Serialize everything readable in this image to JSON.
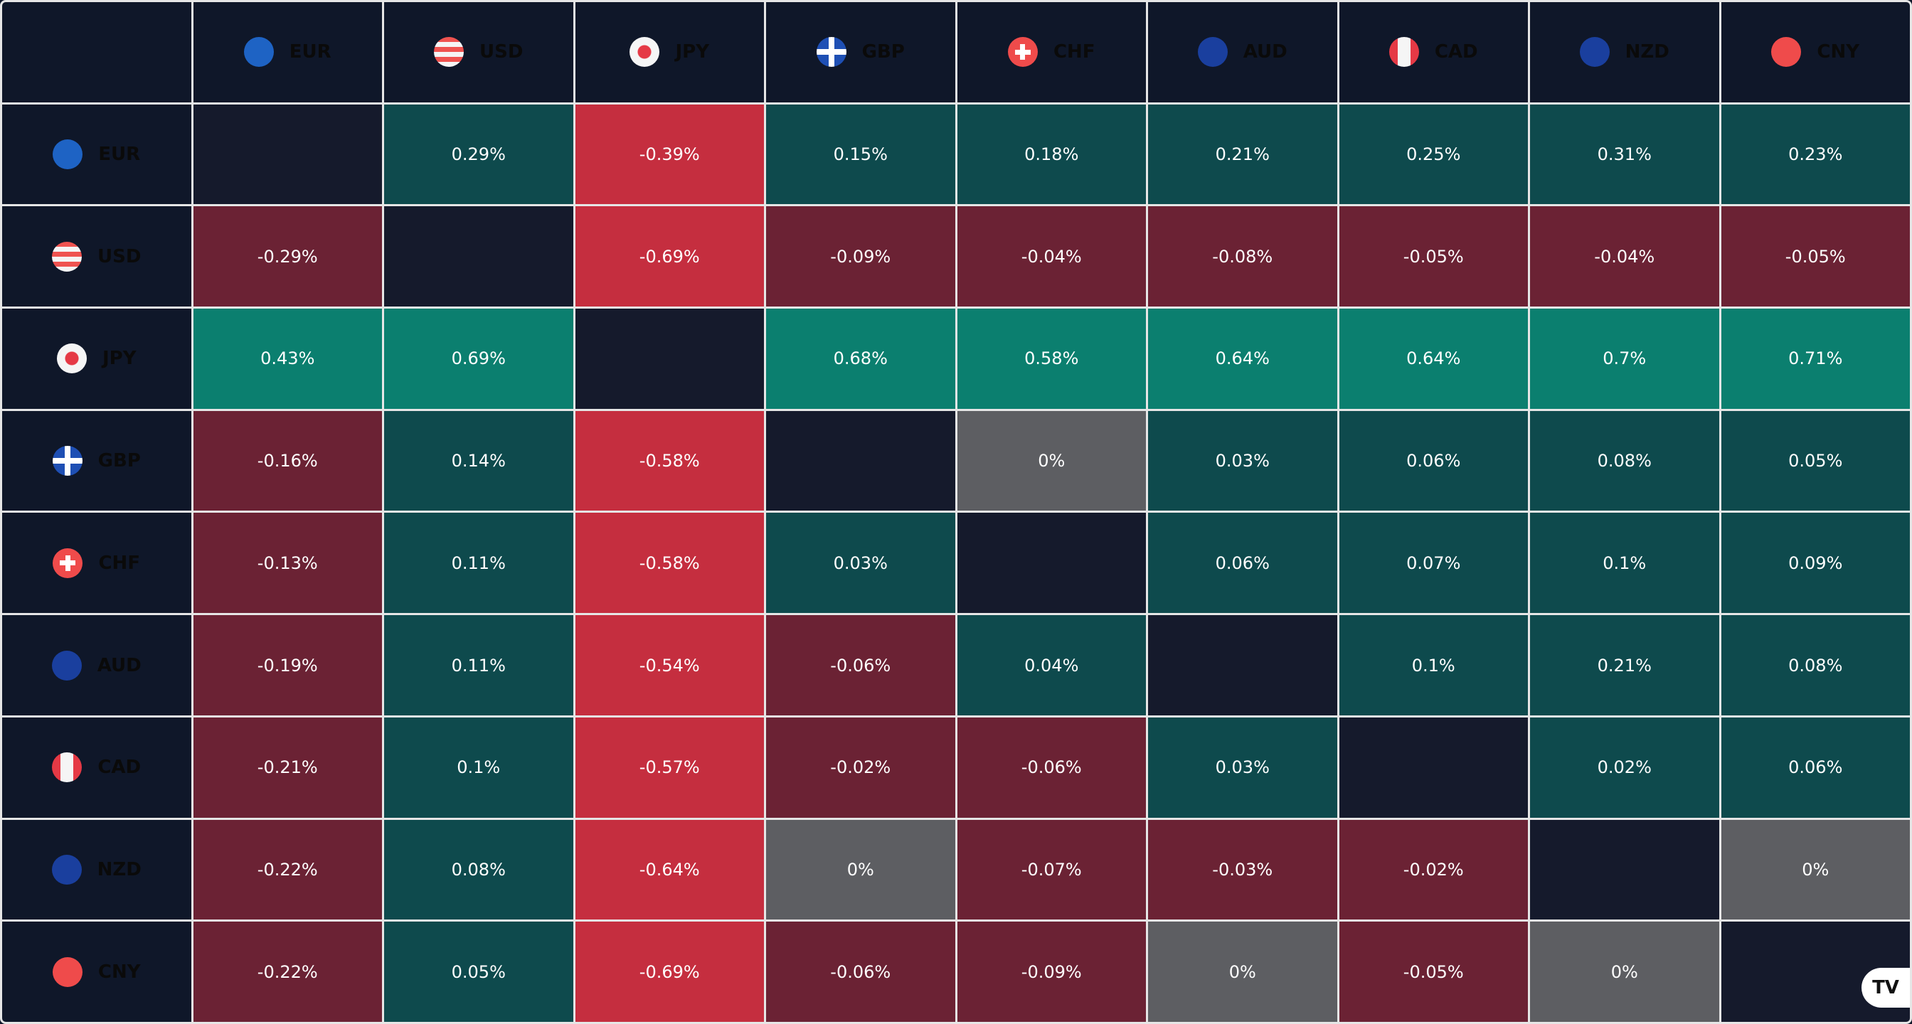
{
  "currencies": [
    "EUR",
    "USD",
    "JPY",
    "GBP",
    "CHF",
    "AUD",
    "CAD",
    "NZD",
    "CNY"
  ],
  "flags": {
    "EUR": "eu-flag",
    "USD": "us-flag",
    "JPY": "jp-flag",
    "GBP": "gb-flag",
    "CHF": "ch-flag",
    "AUD": "au-flag",
    "CAD": "ca-flag",
    "NZD": "nz-flag",
    "CNY": "cn-flag"
  },
  "matrix": [
    [
      "",
      "0.29%",
      "-0.39%",
      "0.15%",
      "0.18%",
      "0.21%",
      "0.25%",
      "0.31%",
      "0.23%"
    ],
    [
      "-0.29%",
      "",
      "-0.69%",
      "-0.09%",
      "-0.04%",
      "-0.08%",
      "-0.05%",
      "-0.04%",
      "-0.05%"
    ],
    [
      "0.43%",
      "0.69%",
      "",
      "0.68%",
      "0.58%",
      "0.64%",
      "0.64%",
      "0.7%",
      "0.71%"
    ],
    [
      "-0.16%",
      "0.14%",
      "-0.58%",
      "",
      "0%",
      "0.03%",
      "0.06%",
      "0.08%",
      "0.05%"
    ],
    [
      "-0.13%",
      "0.11%",
      "-0.58%",
      "0.03%",
      "",
      "0.06%",
      "0.07%",
      "0.1%",
      "0.09%"
    ],
    [
      "-0.19%",
      "0.11%",
      "-0.54%",
      "-0.06%",
      "0.04%",
      "",
      "0.1%",
      "0.21%",
      "0.08%"
    ],
    [
      "-0.21%",
      "0.1%",
      "-0.57%",
      "-0.02%",
      "-0.06%",
      "0.03%",
      "",
      "0.02%",
      "0.06%"
    ],
    [
      "-0.22%",
      "0.08%",
      "-0.64%",
      "0%",
      "-0.07%",
      "-0.03%",
      "-0.02%",
      "",
      "0%"
    ],
    [
      "-0.22%",
      "0.05%",
      "-0.69%",
      "-0.06%",
      "-0.09%",
      "0%",
      "-0.05%",
      "0%",
      ""
    ]
  ],
  "colors": {
    "strong_up": "#0b7f6f",
    "up": "#0e4a4d",
    "down": "#6b2234",
    "strong_down": "#c52e3f",
    "neutral": "#5d5e62",
    "empty": "#151a2c"
  },
  "logo": "TV"
}
